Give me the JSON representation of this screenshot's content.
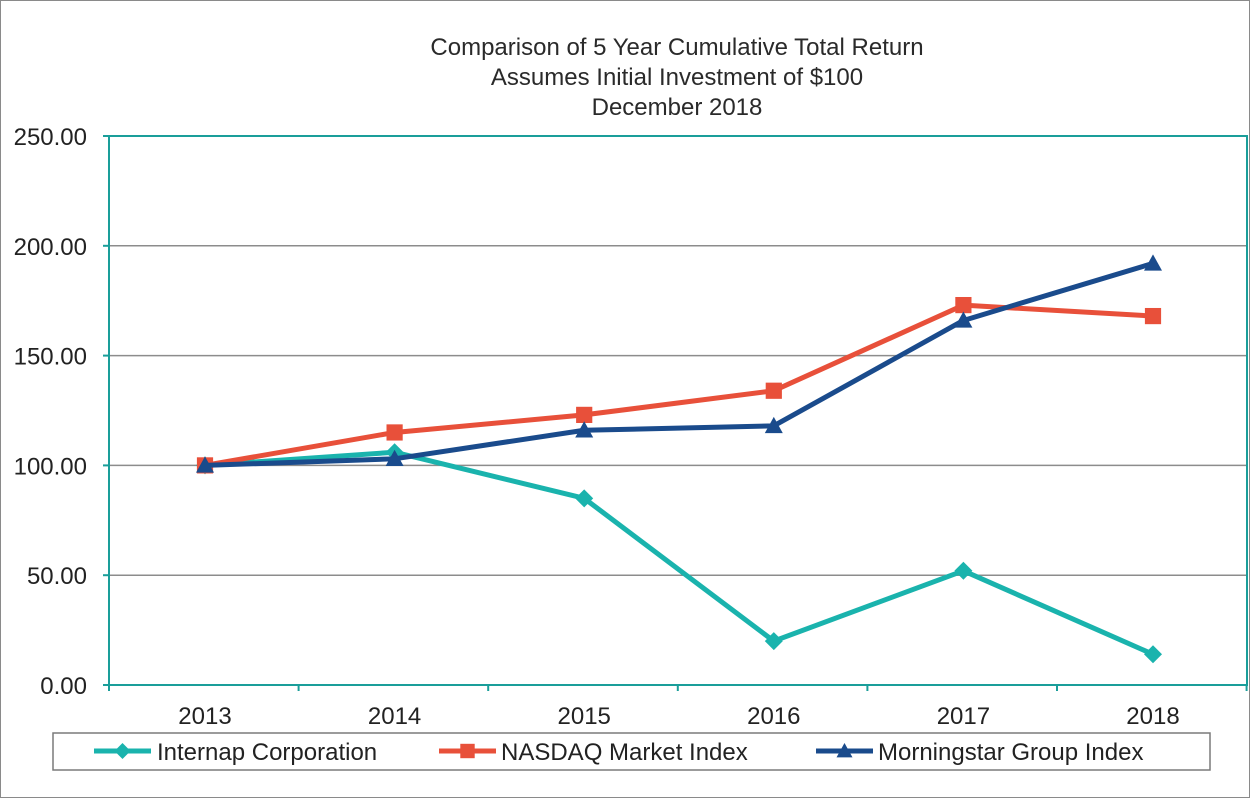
{
  "colors": {
    "internap": "#1ab3ad",
    "nasdaq": "#e8503a",
    "morningstar": "#1a4b8c",
    "plot_border": "#1a9e9a",
    "grid": "#8c8c8c"
  },
  "chart_data": {
    "type": "line",
    "title": "Comparison of 5 Year Cumulative Total Return",
    "subtitle": "Assumes Initial Investment of $100",
    "subtitle2": "December 2018",
    "xlabel": "",
    "ylabel": "",
    "categories": [
      "2013",
      "2014",
      "2015",
      "2016",
      "2017",
      "2018"
    ],
    "ylim": [
      0,
      250
    ],
    "yticks": [
      "0.00",
      "50.00",
      "100.00",
      "150.00",
      "200.00",
      "250.00"
    ],
    "grid": true,
    "legend_position": "bottom",
    "series": [
      {
        "name": "Internap Corporation",
        "marker": "diamond",
        "color": "#1ab3ad",
        "values": [
          100,
          106,
          85,
          20,
          52,
          14
        ]
      },
      {
        "name": "NASDAQ Market Index",
        "marker": "square",
        "color": "#e8503a",
        "values": [
          100,
          115,
          123,
          134,
          173,
          168
        ]
      },
      {
        "name": "Morningstar Group Index",
        "marker": "triangle",
        "color": "#1a4b8c",
        "values": [
          100,
          103,
          116,
          118,
          166,
          192
        ]
      }
    ]
  }
}
